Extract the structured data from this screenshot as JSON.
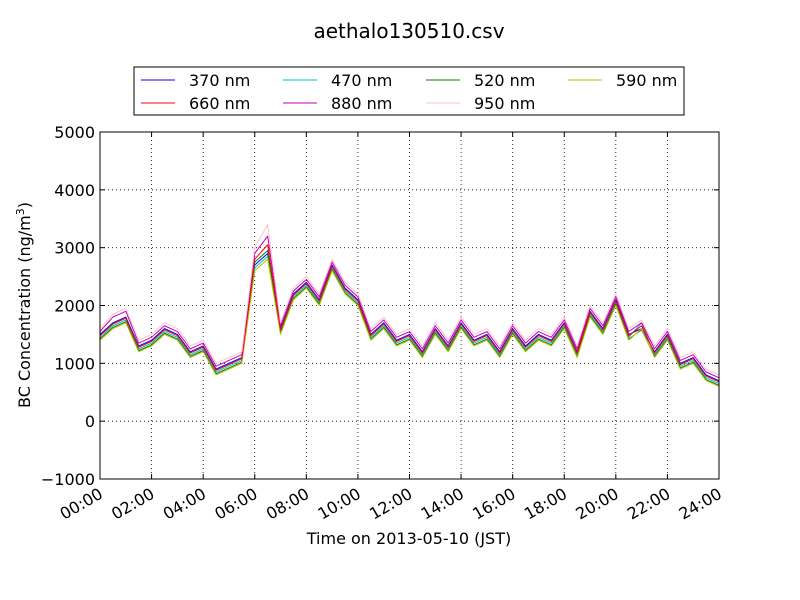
{
  "chart_data": {
    "type": "line",
    "title": "aethalo130510.csv",
    "xlabel": "Time on 2013-05-10 (JST)",
    "ylabel": "BC Concentration (ng/m",
    "ylabel_sup": "3",
    "ylabel_close": ")",
    "xlim": [
      0,
      24
    ],
    "ylim": [
      -1000,
      5000
    ],
    "x_ticks": [
      0,
      2,
      4,
      6,
      8,
      10,
      12,
      14,
      16,
      18,
      20,
      22,
      24
    ],
    "x_tick_labels": [
      "00:00",
      "02:00",
      "04:00",
      "06:00",
      "08:00",
      "10:00",
      "12:00",
      "14:00",
      "16:00",
      "18:00",
      "20:00",
      "22:00",
      "24:00"
    ],
    "y_ticks": [
      -1000,
      0,
      1000,
      2000,
      3000,
      4000,
      5000
    ],
    "y_tick_labels": [
      "−1000",
      "0",
      "1000",
      "2000",
      "3000",
      "4000",
      "5000"
    ],
    "grid": true,
    "legend_position": "top",
    "x": [
      0.0,
      0.5,
      1.0,
      1.5,
      2.0,
      2.5,
      3.0,
      3.5,
      4.0,
      4.5,
      5.0,
      5.5,
      6.0,
      6.5,
      7.0,
      7.5,
      8.0,
      8.5,
      9.0,
      9.5,
      10.0,
      10.5,
      11.0,
      11.5,
      12.0,
      12.5,
      13.0,
      13.5,
      14.0,
      14.5,
      15.0,
      15.5,
      16.0,
      16.5,
      17.0,
      17.5,
      18.0,
      18.5,
      19.0,
      19.5,
      20.0,
      20.5,
      21.0,
      21.5,
      22.0,
      22.5,
      23.0,
      23.5,
      24.0
    ],
    "series": [
      {
        "name": "370 nm",
        "color": "#0000ff",
        "values": [
          1500,
          1700,
          1800,
          1300,
          1400,
          1600,
          1500,
          1200,
          1300,
          900,
          1000,
          1100,
          2700,
          2900,
          1600,
          2200,
          2400,
          2100,
          2700,
          2300,
          2100,
          1500,
          1700,
          1400,
          1500,
          1200,
          1600,
          1300,
          1700,
          1400,
          1500,
          1200,
          1600,
          1300,
          1500,
          1400,
          1700,
          1200,
          1900,
          1600,
          2100,
          1500,
          1600,
          1200,
          1500,
          1000,
          1100,
          800,
          700
        ]
      },
      {
        "name": "470 nm",
        "color": "#00bfbf",
        "values": [
          1450,
          1650,
          1750,
          1250,
          1350,
          1550,
          1450,
          1150,
          1250,
          850,
          950,
          1050,
          2650,
          2850,
          1550,
          2150,
          2350,
          2050,
          2650,
          2250,
          2050,
          1450,
          1650,
          1350,
          1450,
          1150,
          1550,
          1250,
          1650,
          1350,
          1450,
          1150,
          1550,
          1250,
          1450,
          1350,
          1650,
          1150,
          1850,
          1550,
          2050,
          1450,
          1700,
          1150,
          1450,
          950,
          1050,
          750,
          650
        ]
      },
      {
        "name": "520 nm",
        "color": "#008000",
        "values": [
          1420,
          1620,
          1720,
          1220,
          1320,
          1520,
          1420,
          1120,
          1220,
          820,
          920,
          1020,
          2750,
          2950,
          1520,
          2120,
          2320,
          2020,
          2620,
          2220,
          2020,
          1420,
          1620,
          1320,
          1420,
          1120,
          1520,
          1220,
          1620,
          1320,
          1420,
          1120,
          1520,
          1220,
          1420,
          1320,
          1620,
          1120,
          1820,
          1520,
          2020,
          1420,
          1580,
          1120,
          1420,
          920,
          1020,
          720,
          620
        ]
      },
      {
        "name": "590 nm",
        "color": "#bfbf00",
        "values": [
          1400,
          1600,
          1700,
          1200,
          1300,
          1500,
          1400,
          1100,
          1200,
          800,
          900,
          1000,
          2600,
          2800,
          1500,
          2100,
          2300,
          2000,
          2600,
          2200,
          2000,
          1400,
          1600,
          1300,
          1400,
          1100,
          1500,
          1200,
          1600,
          1300,
          1400,
          1100,
          1500,
          1200,
          1400,
          1300,
          1600,
          1100,
          1800,
          1500,
          2000,
          1400,
          1600,
          1100,
          1400,
          900,
          1000,
          700,
          600
        ]
      },
      {
        "name": "660 nm",
        "color": "#ff0000",
        "values": [
          1480,
          1680,
          1780,
          1280,
          1380,
          1580,
          1480,
          1180,
          1280,
          880,
          980,
          1080,
          2800,
          3050,
          1580,
          2180,
          2380,
          2080,
          2680,
          2280,
          2080,
          1480,
          1680,
          1380,
          1480,
          1180,
          1580,
          1280,
          1680,
          1380,
          1480,
          1180,
          1580,
          1280,
          1480,
          1380,
          1680,
          1180,
          1880,
          1580,
          2080,
          1480,
          1650,
          1180,
          1480,
          980,
          1080,
          780,
          680
        ]
      },
      {
        "name": "880 nm",
        "color": "#bf00bf",
        "values": [
          1550,
          1800,
          1900,
          1350,
          1450,
          1650,
          1550,
          1250,
          1350,
          950,
          1050,
          1150,
          2900,
          3200,
          1650,
          2250,
          2450,
          2150,
          2750,
          2350,
          2150,
          1550,
          1750,
          1450,
          1550,
          1250,
          1650,
          1350,
          1750,
          1450,
          1550,
          1250,
          1650,
          1350,
          1550,
          1450,
          1750,
          1250,
          1950,
          1650,
          2150,
          1550,
          1700,
          1250,
          1550,
          1050,
          1150,
          850,
          750
        ]
      },
      {
        "name": "950 nm",
        "color": "#ffc0cb",
        "values": [
          1600,
          1850,
          1950,
          1400,
          1500,
          1700,
          1600,
          1300,
          1400,
          1000,
          1100,
          1200,
          3000,
          3400,
          1700,
          2300,
          2500,
          2200,
          2800,
          2400,
          2200,
          1600,
          1800,
          1500,
          1600,
          1300,
          1700,
          1400,
          1800,
          1500,
          1600,
          1300,
          1700,
          1400,
          1600,
          1500,
          1800,
          1300,
          2000,
          1700,
          2200,
          1600,
          1750,
          1300,
          1600,
          1100,
          1200,
          900,
          800
        ]
      }
    ]
  }
}
